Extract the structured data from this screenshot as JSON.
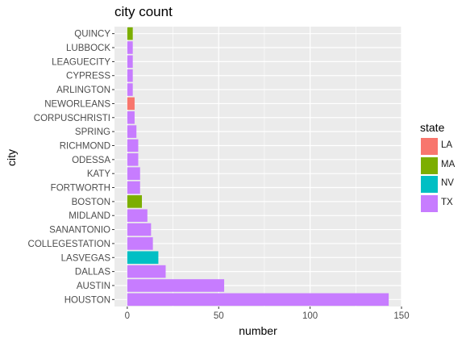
{
  "chart_data": {
    "type": "bar",
    "orientation": "horizontal",
    "title": "city count",
    "xlabel": "number",
    "ylabel": "city",
    "xlim": [
      -7,
      150
    ],
    "xticks": [
      0,
      50,
      100,
      150
    ],
    "grid": true,
    "legend_position": "right",
    "legend_title": "state",
    "legend": [
      {
        "name": "LA",
        "color": "#F8766D"
      },
      {
        "name": "MA",
        "color": "#7CAE00"
      },
      {
        "name": "NV",
        "color": "#00BFC4"
      },
      {
        "name": "TX",
        "color": "#C77CFF"
      }
    ],
    "categories": [
      "HOUSTON",
      "AUSTIN",
      "DALLAS",
      "LASVEGAS",
      "COLLEGESTATION",
      "SANANTONIO",
      "MIDLAND",
      "BOSTON",
      "FORTWORTH",
      "KATY",
      "ODESSA",
      "RICHMOND",
      "SPRING",
      "CORPUSCHRISTI",
      "NEWORLEANS",
      "ARLINGTON",
      "CYPRESS",
      "LEAGUECITY",
      "LUBBOCK",
      "QUINCY"
    ],
    "values": [
      143,
      53,
      21,
      17,
      14,
      13,
      11,
      8,
      7,
      7,
      6,
      6,
      5,
      4,
      4,
      3,
      3,
      3,
      3,
      3
    ],
    "state": [
      "TX",
      "TX",
      "TX",
      "NV",
      "TX",
      "TX",
      "TX",
      "MA",
      "TX",
      "TX",
      "TX",
      "TX",
      "TX",
      "TX",
      "LA",
      "TX",
      "TX",
      "TX",
      "TX",
      "MA"
    ]
  }
}
